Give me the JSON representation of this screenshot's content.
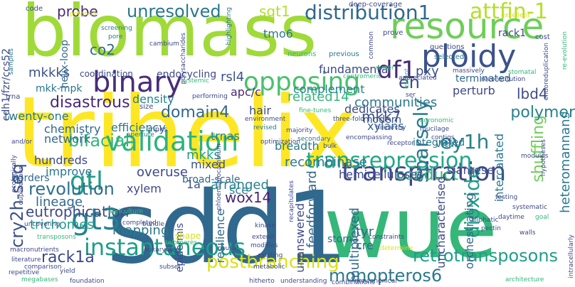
{
  "words": [
    {
      "text": "trihelix",
      "color": "#fde725",
      "weight": 1.0
    },
    {
      "text": "sdd1",
      "color": "#31688e",
      "weight": 0.9
    },
    {
      "text": "wue",
      "color": "#35b779",
      "weight": 0.85
    },
    {
      "text": "biomass",
      "color": "#a0da39",
      "weight": 0.8
    },
    {
      "text": "resource",
      "color": "#6ece58",
      "weight": 0.55
    },
    {
      "text": "ploidy",
      "color": "#3b528b",
      "weight": 0.45
    },
    {
      "text": "binary",
      "color": "#472d7b",
      "weight": 0.42
    },
    {
      "text": "validation",
      "color": "#2db27d",
      "weight": 0.38
    },
    {
      "text": "opposing",
      "color": "#4ac16d",
      "weight": 0.36
    },
    {
      "text": "unresolved",
      "color": "#2a788e",
      "weight": 0.3
    },
    {
      "text": "transpiration",
      "color": "#3e4989",
      "weight": 0.36
    },
    {
      "text": "instantaneous",
      "color": "#1f9e89",
      "weight": 0.3
    },
    {
      "text": "gt3",
      "color": "#26828e",
      "weight": 0.35
    },
    {
      "text": "distribution1",
      "color": "#31688e",
      "weight": 0.28
    },
    {
      "text": "attfin-1",
      "color": "#b5de2b",
      "weight": 0.28
    },
    {
      "text": "transrepression",
      "color": "#22a884",
      "weight": 0.27
    },
    {
      "text": "df1",
      "color": "#482878",
      "weight": 0.26
    },
    {
      "text": "en",
      "color": "#3e4a89",
      "weight": 0.25
    },
    {
      "text": "gtl",
      "color": "#1f9e89",
      "weight": 0.25
    },
    {
      "text": "ey1h",
      "color": "#26828e",
      "weight": 0.25
    },
    {
      "text": "sparsely",
      "color": "#2a788e",
      "weight": 0.24
    },
    {
      "text": "dioxide",
      "color": "#1f9e89",
      "weight": 0.22
    },
    {
      "text": "shuffling",
      "color": "#6ece58",
      "weight": 0.22
    },
    {
      "text": "postbranching",
      "color": "#d8e219",
      "weight": 0.22
    },
    {
      "text": "cry2h-seq",
      "color": "#3b528b",
      "weight": 0.22
    },
    {
      "text": "eutrophication",
      "color": "#3e4989",
      "weight": 0.2
    },
    {
      "text": "bifacial",
      "color": "#35b779",
      "weight": 0.2
    },
    {
      "text": "retrotransposons",
      "color": "#1f9e89",
      "weight": 0.19
    },
    {
      "text": "monopteros6",
      "color": "#2a788e",
      "weight": 0.19
    },
    {
      "text": "rack1a",
      "color": "#3e4a89",
      "weight": 0.18
    },
    {
      "text": "revolution",
      "color": "#2d708e",
      "weight": 0.18
    },
    {
      "text": "mkk7",
      "color": "#3b528b",
      "weight": 0.17
    },
    {
      "text": "domain4",
      "color": "#31688e",
      "weight": 0.17
    },
    {
      "text": "disastrous",
      "color": "#482878",
      "weight": 0.17
    },
    {
      "text": "polymer",
      "color": "#26828e",
      "weight": 0.17
    },
    {
      "text": "lbd4",
      "color": "#3e4a89",
      "weight": 0.16
    },
    {
      "text": "conduct",
      "color": "#35b779",
      "weight": 0.16
    },
    {
      "text": "probe",
      "color": "#482878",
      "weight": 0.16
    },
    {
      "text": "co2",
      "color": "#31688e",
      "weight": 0.15
    },
    {
      "text": "overuse",
      "color": "#3e4989",
      "weight": 0.15
    },
    {
      "text": "wox14",
      "color": "#482878",
      "weight": 0.14
    },
    {
      "text": "pxy",
      "color": "#3b528b",
      "weight": 0.14
    },
    {
      "text": "mkkks",
      "color": "#3b528b",
      "weight": 0.14
    },
    {
      "text": "trichomes",
      "color": "#1f9e89",
      "weight": 0.14
    },
    {
      "text": "mapping",
      "color": "#2a788e",
      "weight": 0.13
    },
    {
      "text": "lineage",
      "color": "#31688e",
      "weight": 0.13
    },
    {
      "text": "recombinase",
      "color": "#2a788e",
      "weight": 0.13
    },
    {
      "text": "arranged",
      "color": "#26828e",
      "weight": 0.13
    },
    {
      "text": "feedforward",
      "color": "#31688e",
      "weight": 0.12
    },
    {
      "text": "heteromannans",
      "color": "#2a788e",
      "weight": 0.12
    },
    {
      "text": "sgt1",
      "color": "#b5de2b",
      "weight": 0.12
    },
    {
      "text": "tmo6",
      "color": "#2a788e",
      "weight": 0.1
    },
    {
      "text": "rsl4",
      "color": "#3b528b",
      "weight": 0.11
    },
    {
      "text": "related14",
      "color": "#35b779",
      "weight": 0.11
    },
    {
      "text": "apc/c",
      "color": "#482878",
      "weight": 0.1
    },
    {
      "text": "hair",
      "color": "#3e4a89",
      "weight": 0.11
    },
    {
      "text": "communities",
      "color": "#2a788e",
      "weight": 0.11
    },
    {
      "text": "dedicates",
      "color": "#3e4989",
      "weight": 0.11
    },
    {
      "text": "chemistry",
      "color": "#31688e",
      "weight": 0.11
    },
    {
      "text": "network",
      "color": "#31688e",
      "weight": 0.1
    },
    {
      "text": "hundreds",
      "color": "#3e4989",
      "weight": 0.1
    },
    {
      "text": "improve",
      "color": "#2a788e",
      "weight": 0.1
    },
    {
      "text": "efficiency",
      "color": "#2a788e",
      "weight": 0.11
    },
    {
      "text": "density",
      "color": "#26828e",
      "weight": 0.1
    },
    {
      "text": "trnas",
      "color": "#26828e",
      "weight": 0.11
    },
    {
      "text": "mkks",
      "color": "#1f9e89",
      "weight": 0.11
    },
    {
      "text": "mixed",
      "color": "#3b528b",
      "weight": 0.1
    },
    {
      "text": "xylem",
      "color": "#3e4989",
      "weight": 0.1
    },
    {
      "text": "xylans",
      "color": "#31688e",
      "weight": 0.1
    },
    {
      "text": "modern",
      "color": "#3b528b",
      "weight": 0.09
    },
    {
      "text": "sce",
      "color": "#26828e",
      "weight": 0.1
    },
    {
      "text": "tyr",
      "color": "#31688e",
      "weight": 0.11
    },
    {
      "text": "cre",
      "color": "#31688e",
      "weight": 0.1
    },
    {
      "text": "stoma",
      "color": "#31688e",
      "weight": 0.09
    },
    {
      "text": "hemicelluloses",
      "color": "#3e4989",
      "weight": 0.1
    },
    {
      "text": "siamese",
      "color": "#3e4989",
      "weight": 0.1
    },
    {
      "text": "vital",
      "color": "#2a788e",
      "weight": 0.09
    },
    {
      "text": "integrated",
      "color": "#2a788e",
      "weight": 0.09
    },
    {
      "text": "multiplexed",
      "color": "#31688e",
      "weight": 0.1
    },
    {
      "text": "uncharacterised",
      "color": "#3e4989",
      "weight": 0.1
    },
    {
      "text": "orchestrating",
      "color": "#31688e",
      "weight": 0.1
    },
    {
      "text": "intercalated",
      "color": "#2a788e",
      "weight": 0.09
    },
    {
      "text": "twenty-one",
      "color": "#2a788e",
      "weight": 0.1
    },
    {
      "text": "borders",
      "color": "#31688e",
      "weight": 0.1
    },
    {
      "text": "broad-scale",
      "color": "#31688e",
      "weight": 0.1
    },
    {
      "text": "epidermis",
      "color": "#3e4989",
      "weight": 0.09
    },
    {
      "text": "resilience",
      "color": "#31688e",
      "weight": 0.09
    },
    {
      "text": "unanswered",
      "color": "#3e4989",
      "weight": 0.09
    },
    {
      "text": "breadth",
      "color": "#2a788e",
      "weight": 0.09
    },
    {
      "text": "complement",
      "color": "#26828e",
      "weight": 0.09
    },
    {
      "text": "fundamental",
      "color": "#3e4989",
      "weight": 0.09
    },
    {
      "text": "perturb",
      "color": "#3e4989",
      "weight": 0.08
    },
    {
      "text": "terminated",
      "color": "#31688e",
      "weight": 0.08
    },
    {
      "text": "helix-loop",
      "color": "#31688e",
      "weight": 0.08
    },
    {
      "text": "cdh1/fzr/ccs52",
      "color": "#3e4989",
      "weight": 0.08
    },
    {
      "text": "mkk-mpk",
      "color": "#2a788e",
      "weight": 0.08
    },
    {
      "text": "rack1",
      "color": "#3e4989",
      "weight": 0.08
    },
    {
      "text": "endocycling",
      "color": "#3e4989",
      "weight": 0.07
    },
    {
      "text": "coordination",
      "color": "#3e4989",
      "weight": 0.06
    },
    {
      "text": "1a",
      "color": "#3b528b",
      "weight": 0.08
    },
    {
      "text": "code",
      "color": "#3e4989",
      "weight": 0.05
    },
    {
      "text": "potential",
      "color": "#d8e219",
      "weight": 0.05
    },
    {
      "text": "deep-coverage",
      "color": "#3e4989",
      "weight": 0.05
    },
    {
      "text": "prove",
      "color": "#3e4989",
      "weight": 0.05
    },
    {
      "text": "excellent",
      "color": "#d8e219",
      "weight": 0.04
    },
    {
      "text": "cost",
      "color": "#3e4989",
      "weight": 0.05
    },
    {
      "text": "previous",
      "color": "#2a788e",
      "weight": 0.05
    },
    {
      "text": "questions",
      "color": "#3e4989",
      "weight": 0.05
    },
    {
      "text": "selected",
      "color": "#2a788e",
      "weight": 0.05
    },
    {
      "text": "neurons",
      "color": "#35b779",
      "weight": 0.04
    },
    {
      "text": "samples",
      "color": "#2a788e",
      "weight": 0.04
    },
    {
      "text": "polysaccharides",
      "color": "#3e4989",
      "weight": 0.05
    },
    {
      "text": "cambium",
      "color": "#3e4989",
      "weight": 0.04
    },
    {
      "text": "screening",
      "color": "#2a788e",
      "weight": 0.04
    },
    {
      "text": "pore",
      "color": "#2a788e",
      "weight": 0.04
    },
    {
      "text": "highlighting",
      "color": "#2a788e",
      "weight": 0.04
    },
    {
      "text": "common",
      "color": "#3e4989",
      "weight": 0.04
    },
    {
      "text": "reconstitution",
      "color": "#3e4989",
      "weight": 0.04
    },
    {
      "text": "re-evolution",
      "color": "#35b779",
      "weight": 0.04
    },
    {
      "text": "stomatal",
      "color": "#35b779",
      "weight": 0.04
    },
    {
      "text": "centromeric",
      "color": "#35b779",
      "weight": 0.04
    },
    {
      "text": "appreciated",
      "color": "#3e4989",
      "weight": 0.04
    },
    {
      "text": "massively",
      "color": "#3e4989",
      "weight": 0.04
    },
    {
      "text": "performing",
      "color": "#3e4989",
      "weight": 0.04
    },
    {
      "text": "systemic",
      "color": "#35b779",
      "weight": 0.04
    },
    {
      "text": "trna",
      "color": "#3e4989",
      "weight": 0.04
    },
    {
      "text": "mpks",
      "color": "#3e4989",
      "weight": 0.04
    },
    {
      "text": "size",
      "color": "#3e4989",
      "weight": 0.04
    },
    {
      "text": "environment",
      "color": "#3e4989",
      "weight": 0.04
    },
    {
      "text": "revised",
      "color": "#2a788e",
      "weight": 0.04
    },
    {
      "text": "fine-tunes",
      "color": "#35b779",
      "weight": 0.04
    },
    {
      "text": "three-fold",
      "color": "#3e4989",
      "weight": 0.04
    },
    {
      "text": "ser",
      "color": "#3e4989",
      "weight": 0.04
    },
    {
      "text": "modules",
      "color": "#3e4989",
      "weight": 0.04
    },
    {
      "text": "hypotheses",
      "color": "#3e4989",
      "weight": 0.04
    },
    {
      "text": "agronomic",
      "color": "#35b779",
      "weight": 0.04
    },
    {
      "text": "mucilage",
      "color": "#3e4989",
      "weight": 0.04
    },
    {
      "text": "contigs",
      "color": "#3e4989",
      "weight": 0.04
    },
    {
      "text": "majority",
      "color": "#3e4989",
      "weight": 0.04
    },
    {
      "text": "secondary",
      "color": "#2a788e",
      "weight": 0.04
    },
    {
      "text": "bulk",
      "color": "#3e4989",
      "weight": 0.04
    },
    {
      "text": "encompassing",
      "color": "#3e4989",
      "weight": 0.04
    },
    {
      "text": "optimization",
      "color": "#3e4989",
      "weight": 0.04
    },
    {
      "text": "phloem-procambium",
      "color": "#3e4989",
      "weight": 0.04
    },
    {
      "text": "aperture",
      "color": "#2a788e",
      "weight": 0.04
    },
    {
      "text": "uncovering",
      "color": "#3e4989",
      "weight": 0.04
    },
    {
      "text": "transposons",
      "color": "#35b779",
      "weight": 0.04
    },
    {
      "text": "agriculture",
      "color": "#35b779",
      "weight": 0.04
    },
    {
      "text": "completed",
      "color": "#3e4989",
      "weight": 0.04
    },
    {
      "text": "bundle",
      "color": "#3e4989",
      "weight": 0.04
    },
    {
      "text": "shape",
      "color": "#d8e219",
      "weight": 0.05
    },
    {
      "text": "telomeres",
      "color": "#35b779",
      "weight": 0.04
    },
    {
      "text": "kinase",
      "color": "#3e4989",
      "weight": 0.04
    },
    {
      "text": "extend",
      "color": "#3e4989",
      "weight": 0.04
    },
    {
      "text": "modifies",
      "color": "#3e4989",
      "weight": 0.04
    },
    {
      "text": "existing",
      "color": "#3e4989",
      "weight": 0.04
    },
    {
      "text": "constraints",
      "color": "#3e4989",
      "weight": 0.04
    },
    {
      "text": "determine",
      "color": "#d8e219",
      "weight": 0.04
    },
    {
      "text": "combinations",
      "color": "#3e4989",
      "weight": 0.04
    },
    {
      "text": "noncanonical",
      "color": "#3e4989",
      "weight": 0.04
    },
    {
      "text": "aliphatic",
      "color": "#3e4989",
      "weight": 0.04
    },
    {
      "text": "pectin",
      "color": "#3e4989",
      "weight": 0.04
    },
    {
      "text": "walls",
      "color": "#3e4989",
      "weight": 0.04
    },
    {
      "text": "architecture",
      "color": "#35b779",
      "weight": 0.04
    },
    {
      "text": "intracellularly",
      "color": "#3e4989",
      "weight": 0.04
    },
    {
      "text": "testing",
      "color": "#3e4989",
      "weight": 0.04
    },
    {
      "text": "systematic",
      "color": "#3e4989",
      "weight": 0.04
    },
    {
      "text": "daytime",
      "color": "#3e4989",
      "weight": 0.04
    },
    {
      "text": "goal",
      "color": "#35b779",
      "weight": 0.04
    },
    {
      "text": "literature",
      "color": "#3e4989",
      "weight": 0.04
    },
    {
      "text": "comparison",
      "color": "#3e4989",
      "weight": 0.04
    },
    {
      "text": "yield",
      "color": "#3e4989",
      "weight": 0.04
    },
    {
      "text": "foundation",
      "color": "#3e4989",
      "weight": 0.04
    },
    {
      "text": "hitherto",
      "color": "#3e4989",
      "weight": 0.04
    },
    {
      "text": "understanding",
      "color": "#3e4989",
      "weight": 0.04
    },
    {
      "text": "megabases",
      "color": "#35b779",
      "weight": 0.04
    },
    {
      "text": "repetitive",
      "color": "#3e4989",
      "weight": 0.04
    },
    {
      "text": "eukaryotes",
      "color": "#3e4989",
      "weight": 0.04
    },
    {
      "text": "causal",
      "color": "#3e4989",
      "weight": 0.04
    },
    {
      "text": "subset",
      "color": "#3e4989",
      "weight": 0.04
    },
    {
      "text": "ecologically",
      "color": "#3e4989",
      "weight": 0.04
    },
    {
      "text": "duplications",
      "color": "#3e4989",
      "weight": 0.04
    },
    {
      "text": "and/or",
      "color": "#3e4989",
      "weight": 0.04
    },
    {
      "text": "metabolic",
      "color": "#3e4989",
      "weight": 0.04
    },
    {
      "text": "recapitulates",
      "color": "#3e4989",
      "weight": 0.04
    },
    {
      "text": "hierarchy",
      "color": "#3e4989",
      "weight": 0.04
    },
    {
      "text": "receptor",
      "color": "#3e4989",
      "weight": 0.04
    },
    {
      "text": "endoreduplication",
      "color": "#3e4989",
      "weight": 0.04
    },
    {
      "text": "water",
      "color": "#35b779",
      "weight": 0.04
    },
    {
      "text": "extent",
      "color": "#35b779",
      "weight": 0.04
    },
    {
      "text": "macronutrients",
      "color": "#3e4989",
      "weight": 0.04
    }
  ]
}
